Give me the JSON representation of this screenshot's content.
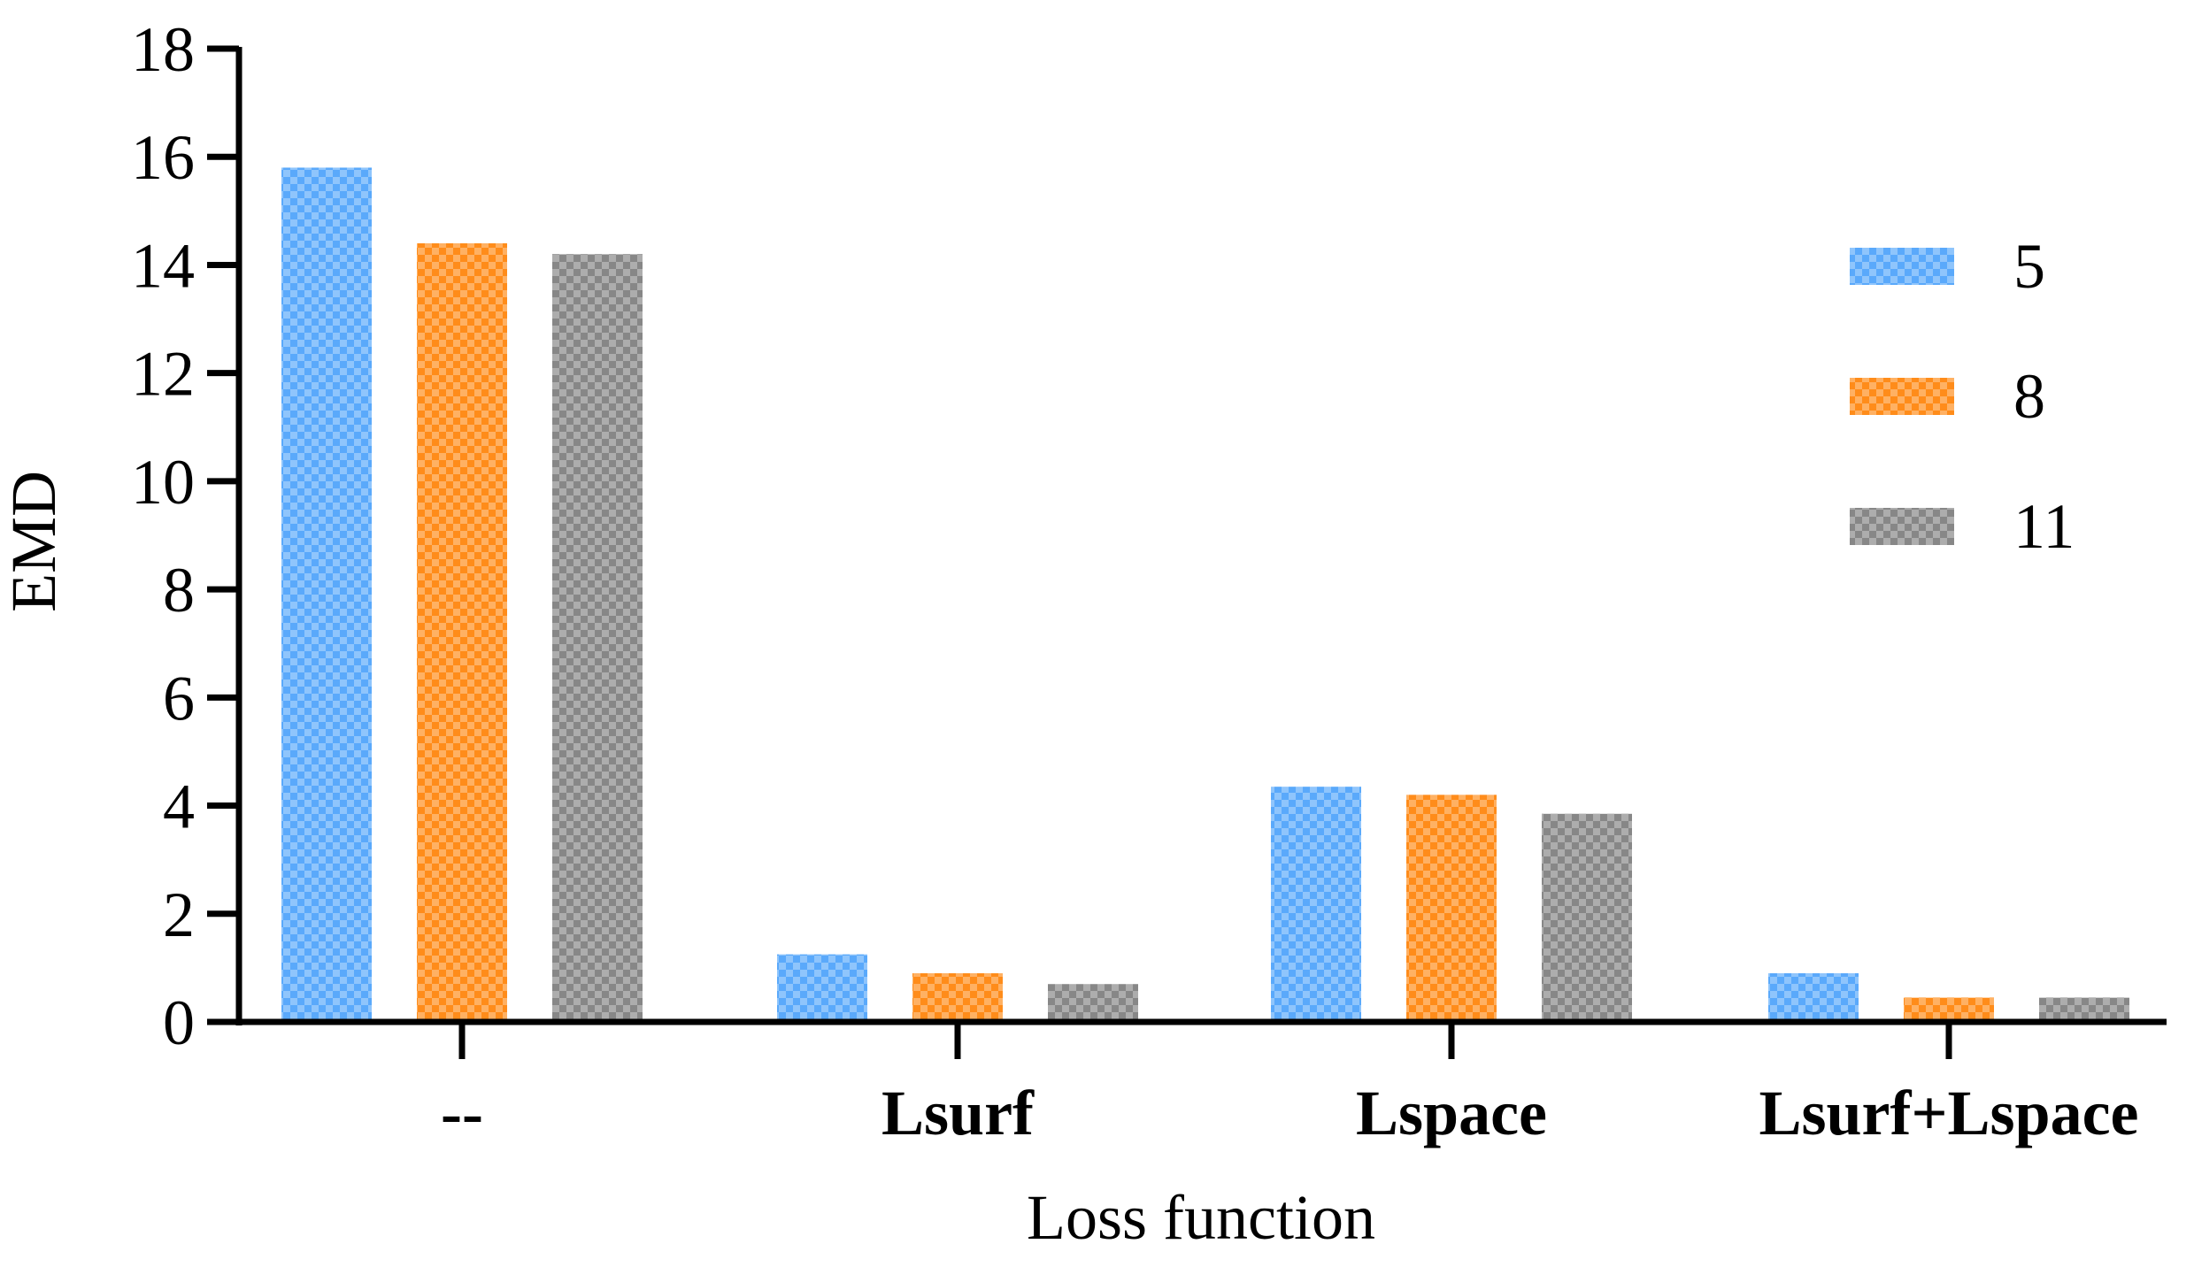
{
  "chart_data": {
    "type": "bar",
    "title": "",
    "xlabel": "Loss function",
    "ylabel": "EMD",
    "categories": [
      "--",
      "Lsurf",
      "Lspace",
      "Lsurf+Lspace"
    ],
    "series": [
      {
        "name": "5",
        "color": "#5aa9fb",
        "values": [
          15.8,
          1.25,
          4.35,
          0.9
        ]
      },
      {
        "name": "8",
        "color": "#ff8c1a",
        "values": [
          14.4,
          0.9,
          4.2,
          0.45
        ]
      },
      {
        "name": "11",
        "color": "#878787",
        "values": [
          14.2,
          0.7,
          3.85,
          0.45
        ]
      }
    ],
    "ylim": [
      0,
      18
    ],
    "yticks": [
      0,
      2,
      4,
      6,
      8,
      10,
      12,
      14,
      16,
      18
    ],
    "grid": false,
    "legend_position": "right",
    "bar_pattern": "checkerboard"
  }
}
